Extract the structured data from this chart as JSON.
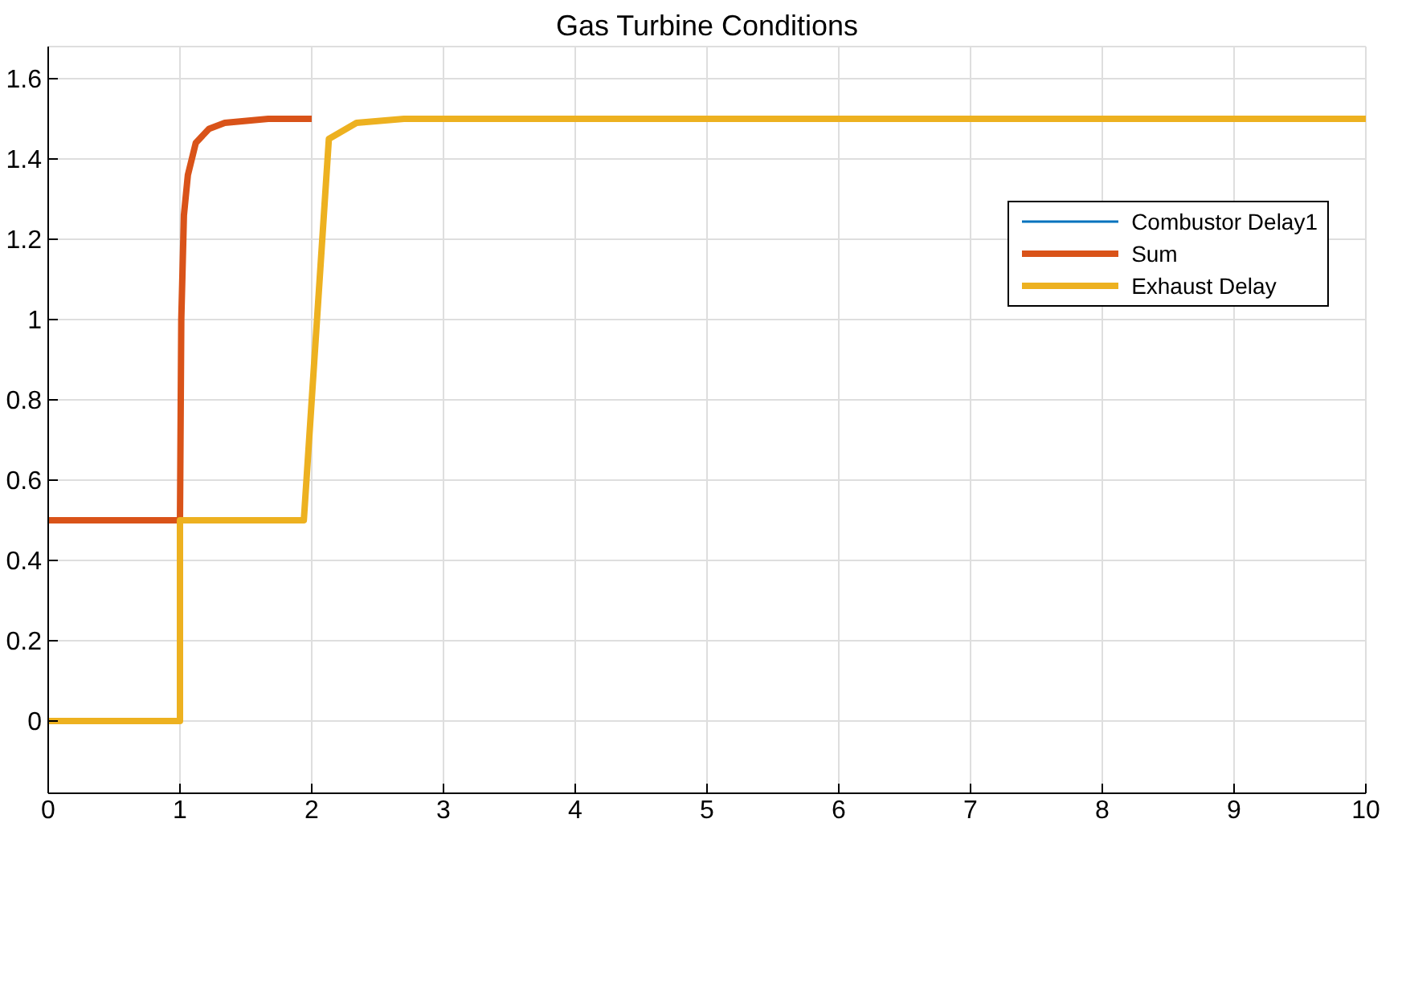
{
  "chart_data": {
    "type": "line",
    "title": "Gas Turbine Conditions",
    "xlim": [
      0,
      10
    ],
    "xticks": [
      0,
      1,
      2,
      3,
      4,
      5,
      6,
      7,
      8,
      9,
      10
    ],
    "ylim": [
      -0.18,
      1.68
    ],
    "yticks": [
      0,
      0.2,
      0.4,
      0.6,
      0.8,
      1,
      1.2,
      1.4,
      1.6
    ],
    "grid": true,
    "legend": "top right",
    "marker": "none",
    "line_style": "solid",
    "series": [
      {
        "name": "Combustor Delay1",
        "color": "#0072bd"
      },
      {
        "name": "Sum",
        "color": "#d95319",
        "x": [
          0,
          1,
          1.01,
          1.03,
          1.06,
          1.12,
          1.22,
          1.34,
          1.67,
          2
        ],
        "values": [
          0.5,
          0.5,
          1.0,
          1.26,
          1.36,
          1.44,
          1.475,
          1.49,
          1.5,
          1.5
        ]
      },
      {
        "name": "Exhaust Delay",
        "color": "#edb120",
        "x": [
          0,
          1,
          1,
          1.94,
          2.13,
          2.34,
          2.7,
          10
        ],
        "values": [
          0,
          0,
          0.5,
          0.5,
          1.45,
          1.49,
          1.5,
          1.5
        ]
      }
    ]
  }
}
